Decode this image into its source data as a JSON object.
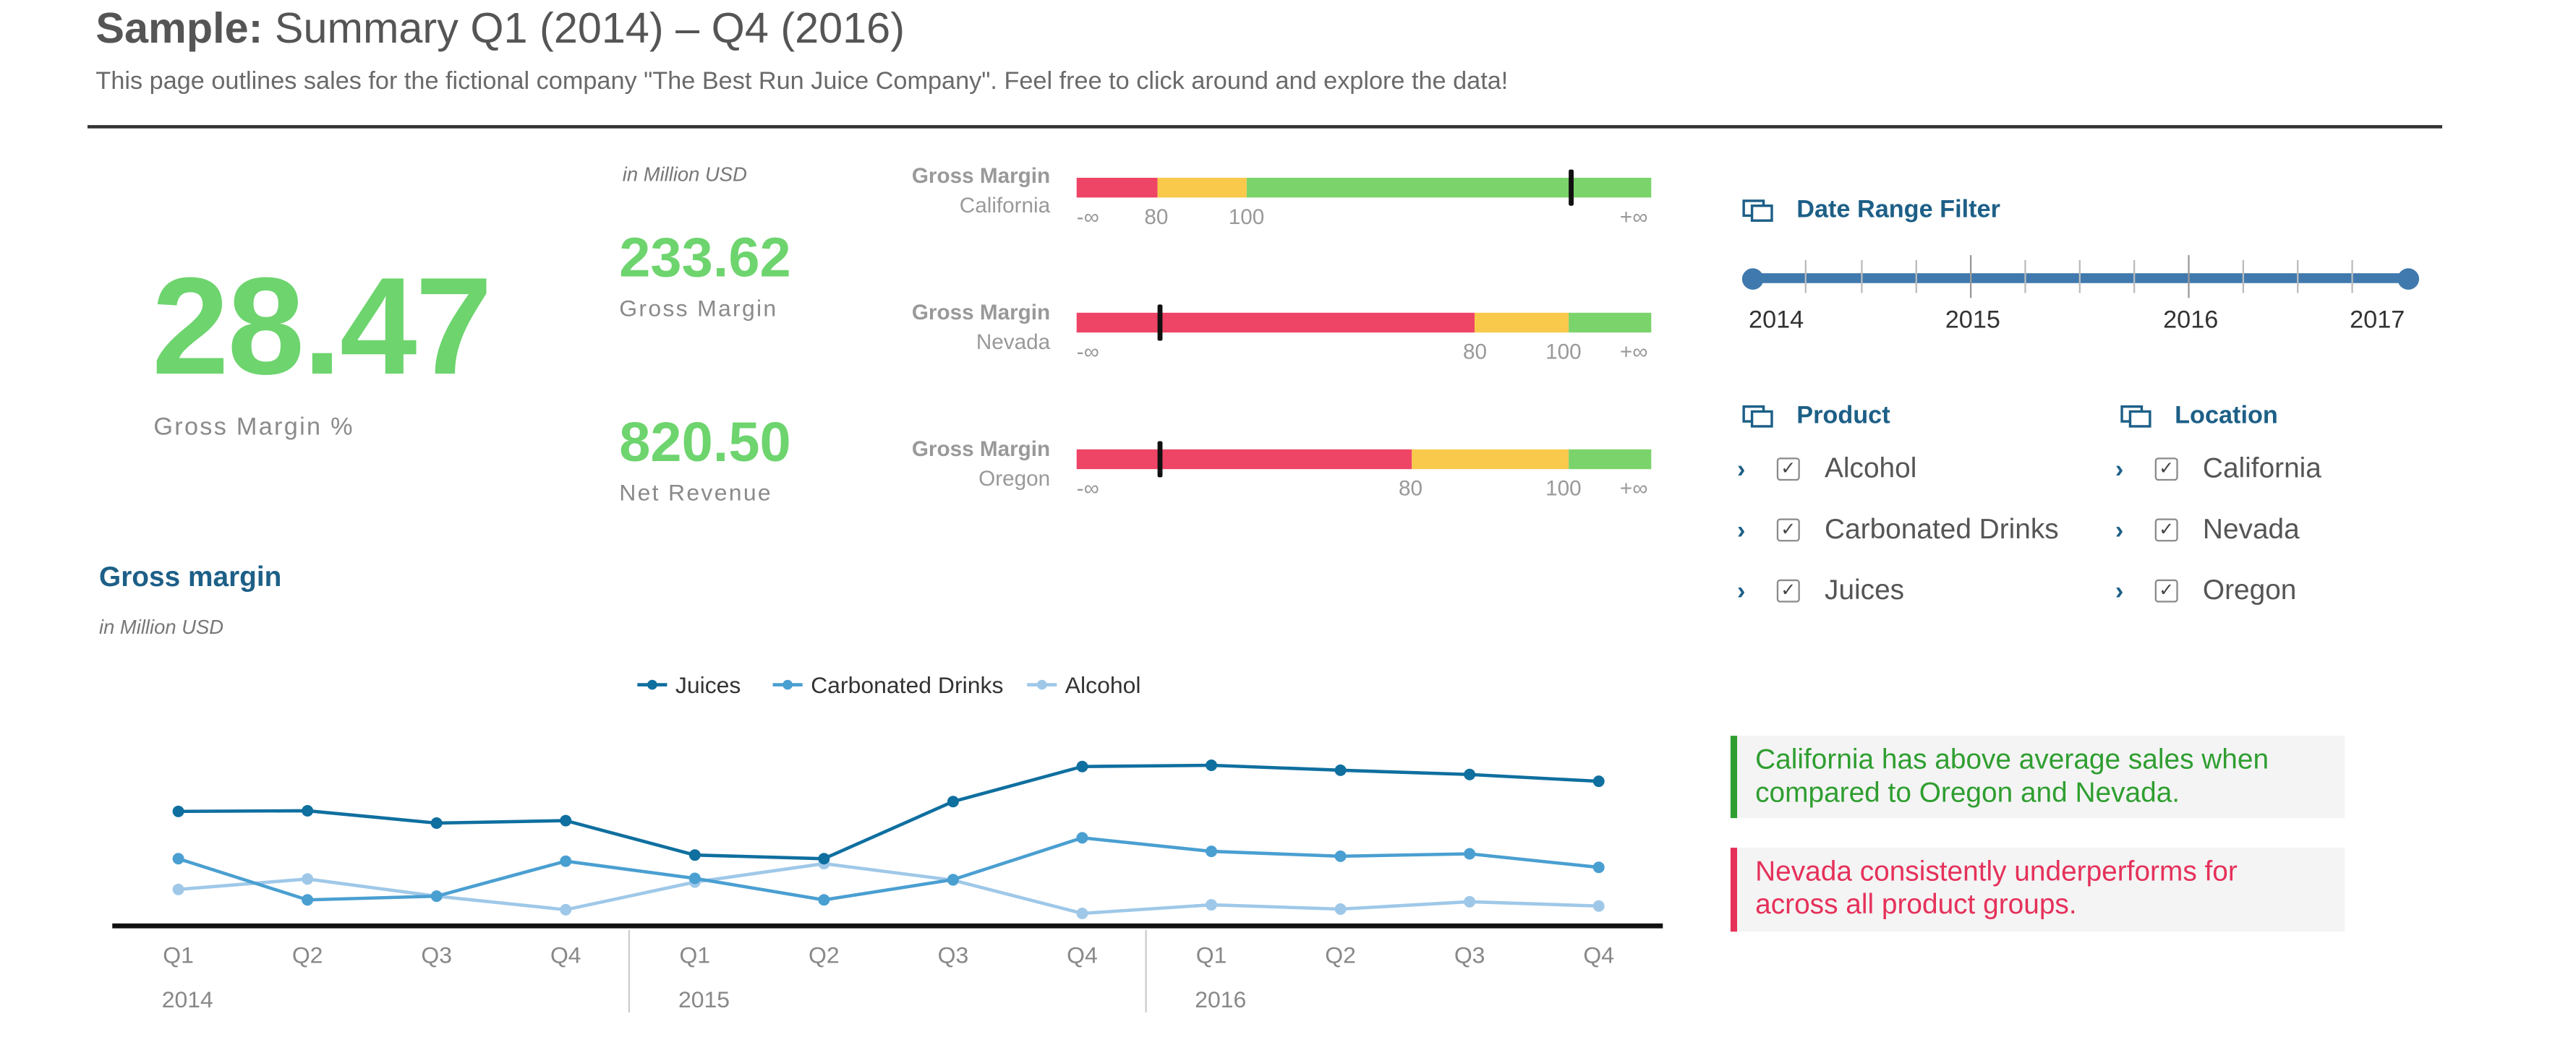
{
  "header": {
    "title_prefix": "Sample:",
    "title_rest": " Summary Q1 (2014) – Q4 (2016)",
    "subtitle": "This page outlines sales for the fictional company \"The Best Run Juice Company\". Feel free to click around and explore the data!"
  },
  "kpis": {
    "gross_margin_pct": {
      "value": "28.47",
      "label": "Gross Margin %"
    },
    "unit_note": "in Million USD",
    "gross_margin": {
      "value": "233.62",
      "label": "Gross Margin"
    },
    "net_revenue": {
      "value": "820.50",
      "label": "Net Revenue"
    }
  },
  "bullets": [
    {
      "title": "Gross Margin",
      "region": "California",
      "ticks": [
        "-∞",
        "80",
        "100",
        "+∞"
      ],
      "marker_level": 0.86
    },
    {
      "title": "Gross Margin",
      "region": "Nevada",
      "ticks": [
        "-∞",
        "80",
        "100",
        "+∞"
      ],
      "marker_level": 0.145
    },
    {
      "title": "Gross Margin",
      "region": "Oregon",
      "ticks": [
        "-∞",
        "80",
        "100",
        "+∞"
      ],
      "marker_level": 0.145
    }
  ],
  "filters": {
    "date_range": {
      "title": "Date Range Filter",
      "years": [
        "2014",
        "2015",
        "2016",
        "2017"
      ],
      "from": "2014",
      "to": "2017"
    },
    "product": {
      "title": "Product",
      "items": [
        "Alcohol",
        "Carbonated Drinks",
        "Juices"
      ],
      "checked": [
        true,
        true,
        true
      ]
    },
    "location": {
      "title": "Location",
      "items": [
        "California",
        "Nevada",
        "Oregon"
      ],
      "checked": [
        true,
        true,
        true
      ]
    }
  },
  "notes": {
    "green": "California has above average sales when compared to Oregon and Nevada.",
    "red": "Nevada consistently underperforms for across all product groups."
  },
  "colors": {
    "kpi_green": "#6dd46e",
    "bullet_red": "#ee4466",
    "bullet_yellow": "#f9c94b",
    "bullet_green": "#7bd36b",
    "accent_blue": "#1d5f87",
    "juices": "#0f6f9f",
    "carbonated": "#4a9fd1",
    "alcohol": "#9fc8e8"
  },
  "icons": {
    "filter_panel": "layered-squares-icon",
    "tree_expand": "chevron-right-icon",
    "checkbox": "check-icon"
  },
  "chart_data": {
    "type": "line",
    "title": "Gross margin",
    "subtitle": "in Million USD",
    "categories": [
      "Q1",
      "Q2",
      "Q3",
      "Q4",
      "Q1",
      "Q2",
      "Q3",
      "Q4",
      "Q1",
      "Q2",
      "Q3",
      "Q4"
    ],
    "year_groups": [
      "2014",
      "2015",
      "2016"
    ],
    "legend_position": "top-center",
    "series": [
      {
        "name": "Juices",
        "values": [
          18.5,
          18.6,
          16.6,
          17.0,
          11.4,
          10.8,
          20.1,
          25.8,
          26.0,
          25.2,
          24.5,
          23.4
        ]
      },
      {
        "name": "Carbonated Drinks",
        "values": [
          10.8,
          4.1,
          4.7,
          10.4,
          7.6,
          4.1,
          7.4,
          14.2,
          12.0,
          11.2,
          11.6,
          9.4
        ]
      },
      {
        "name": "Alcohol",
        "values": [
          5.8,
          7.5,
          4.7,
          2.5,
          7.0,
          10.0,
          7.3,
          1.9,
          3.3,
          2.6,
          3.8,
          3.1
        ]
      }
    ],
    "ylim": [
      0,
      30
    ]
  }
}
